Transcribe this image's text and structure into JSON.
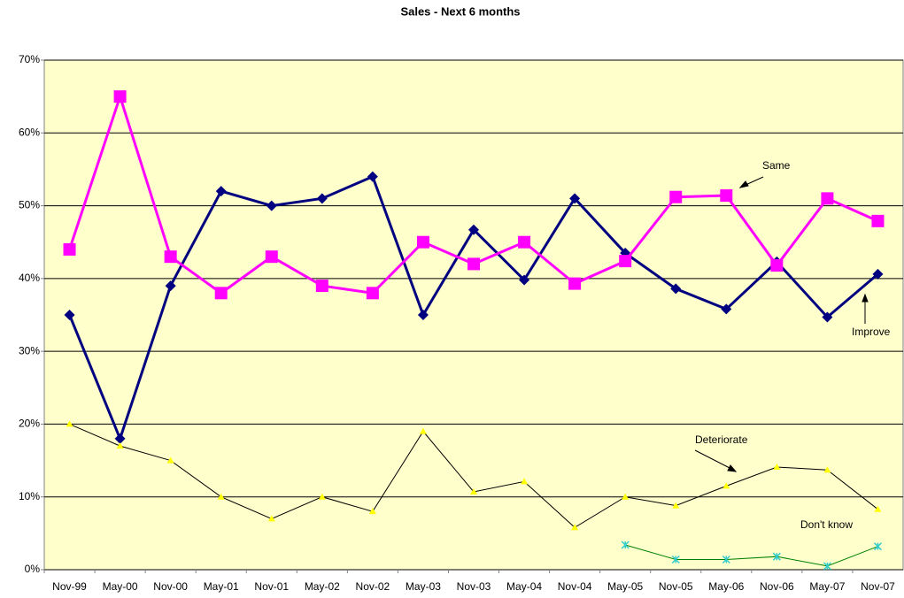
{
  "chart_data": {
    "type": "line",
    "title": "Sales - Next 6 months",
    "categories": [
      "Nov-99",
      "May-00",
      "Nov-00",
      "May-01",
      "Nov-01",
      "May-02",
      "Nov-02",
      "May-03",
      "Nov-03",
      "May-04",
      "Nov-04",
      "May-05",
      "Nov-05",
      "May-06",
      "Nov-06",
      "May-07",
      "Nov-07"
    ],
    "series": [
      {
        "name": "Improve",
        "color": "#000080",
        "marker_color": "#000080",
        "marker": "diamond",
        "values": [
          35,
          18,
          39,
          52,
          50,
          51,
          54,
          35,
          46.7,
          39.8,
          51,
          43.5,
          38.6,
          35.8,
          42.3,
          34.7,
          40.6
        ]
      },
      {
        "name": "Same",
        "color": "#FF00FF",
        "marker_color": "#FF00FF",
        "marker": "square",
        "values": [
          44,
          65,
          43,
          38,
          43,
          39,
          38,
          45,
          42,
          45,
          39.3,
          42.4,
          51.2,
          51.4,
          41.8,
          51,
          47.9
        ]
      },
      {
        "name": "Deteriorate",
        "color": "#000000",
        "marker_color": "#FFFF00",
        "marker": "triangle",
        "values": [
          20,
          17,
          15,
          10,
          7,
          10,
          8,
          19,
          10.7,
          12.1,
          5.8,
          10,
          8.8,
          11.5,
          14.1,
          13.7,
          8.3
        ]
      },
      {
        "name": "Don't know",
        "color": "#008000",
        "marker_color": "#33CCCC",
        "marker": "star",
        "values": [
          null,
          null,
          null,
          null,
          null,
          null,
          null,
          null,
          null,
          null,
          null,
          3.4,
          1.4,
          1.4,
          1.8,
          0.5,
          3.2
        ]
      }
    ],
    "ylim": [
      0,
      70
    ],
    "yticks": [
      {
        "value": 0,
        "label": "0%"
      },
      {
        "value": 10,
        "label": "10%"
      },
      {
        "value": 20,
        "label": "20%"
      },
      {
        "value": 30,
        "label": "30%"
      },
      {
        "value": 40,
        "label": "40%"
      },
      {
        "value": 50,
        "label": "50%"
      },
      {
        "value": 60,
        "label": "60%"
      },
      {
        "value": 70,
        "label": "70%"
      }
    ],
    "grid": true,
    "background": "#FFFFCC"
  }
}
